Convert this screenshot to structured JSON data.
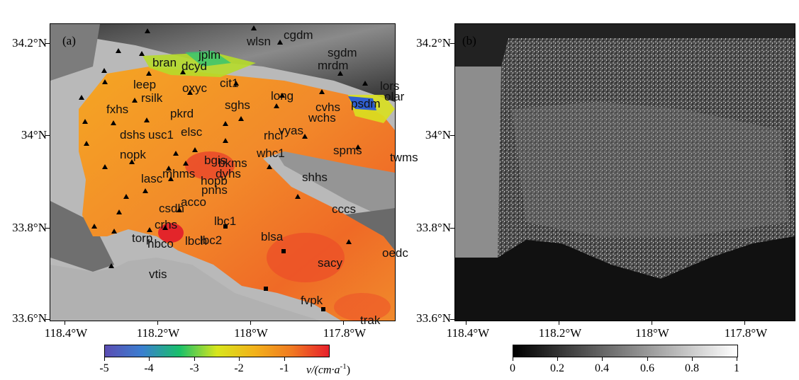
{
  "panels": {
    "a_tag": "(a)",
    "b_tag": "(b)"
  },
  "y_axis_labels": [
    "34.2°N",
    "34°N",
    "33.8°N",
    "33.6°N"
  ],
  "x_axis_labels": [
    "118.4°W",
    "118.2°W",
    "118°W",
    "117.8°W"
  ],
  "stations": [
    {
      "name": "wlsn",
      "marker": "triangle"
    },
    {
      "name": "cgdm",
      "marker": "triangle"
    },
    {
      "name": "bran",
      "marker": "triangle"
    },
    {
      "name": "jplm",
      "marker": "triangle"
    },
    {
      "name": "dcyd",
      "marker": "triangle"
    },
    {
      "name": "sgdm",
      "marker": "triangle"
    },
    {
      "name": "mrdm",
      "marker": "triangle"
    },
    {
      "name": "leep",
      "marker": "triangle"
    },
    {
      "name": "oxyc",
      "marker": "triangle"
    },
    {
      "name": "cit1",
      "marker": "triangle"
    },
    {
      "name": "lors",
      "marker": "triangle"
    },
    {
      "name": "olar",
      "marker": "triangle"
    },
    {
      "name": "rsilk",
      "marker": "triangle"
    },
    {
      "name": "long",
      "marker": "triangle"
    },
    {
      "name": "fxhs",
      "marker": "triangle"
    },
    {
      "name": "pkrd",
      "marker": "triangle"
    },
    {
      "name": "sghs",
      "marker": "triangle"
    },
    {
      "name": "cvhs",
      "marker": "triangle"
    },
    {
      "name": "psdm",
      "marker": "triangle"
    },
    {
      "name": "wchs",
      "marker": "triangle"
    },
    {
      "name": "dshs",
      "marker": "triangle"
    },
    {
      "name": "usc1",
      "marker": "triangle"
    },
    {
      "name": "elsc",
      "marker": "triangle"
    },
    {
      "name": "rhcl",
      "marker": "triangle"
    },
    {
      "name": "vyas",
      "marker": "triangle"
    },
    {
      "name": "nopk",
      "marker": "triangle"
    },
    {
      "name": "spms",
      "marker": "triangle"
    },
    {
      "name": "twms",
      "marker": "triangle"
    },
    {
      "name": "bgis",
      "marker": "triangle"
    },
    {
      "name": "whc1",
      "marker": "triangle"
    },
    {
      "name": "bkms",
      "marker": "triangle"
    },
    {
      "name": "lasc",
      "marker": "triangle"
    },
    {
      "name": "mhms",
      "marker": "triangle"
    },
    {
      "name": "hopb",
      "marker": "triangle"
    },
    {
      "name": "dyhs",
      "marker": "triangle"
    },
    {
      "name": "shhs",
      "marker": "triangle"
    },
    {
      "name": "pnhs",
      "marker": "triangle"
    },
    {
      "name": "acco",
      "marker": "triangle"
    },
    {
      "name": "csdh",
      "marker": "triangle"
    },
    {
      "name": "cccs",
      "marker": "triangle"
    },
    {
      "name": "lbc1",
      "marker": "triangle"
    },
    {
      "name": "crhs",
      "marker": "triangle"
    },
    {
      "name": "torp",
      "marker": "triangle"
    },
    {
      "name": "blsa",
      "marker": "square"
    },
    {
      "name": "lbch",
      "marker": "triangle"
    },
    {
      "name": "lbc2",
      "marker": "triangle"
    },
    {
      "name": "hbco",
      "marker": "triangle"
    },
    {
      "name": "oedc",
      "marker": "triangle"
    },
    {
      "name": "sacy",
      "marker": "square"
    },
    {
      "name": "vtis",
      "marker": "triangle"
    },
    {
      "name": "fvpk",
      "marker": "square"
    },
    {
      "name": "trak",
      "marker": "square"
    }
  ],
  "colorbar_a": {
    "ticks": [
      "-5",
      "-4",
      "-3",
      "-2",
      "-1"
    ],
    "unit": "v/(cm·a",
    "unit_sup": "-1",
    "unit_close": ")",
    "colors": [
      "#5b4db3",
      "#3a7fd0",
      "#19c06a",
      "#d8e61c",
      "#f2b21a",
      "#f07a22",
      "#e8202b"
    ]
  },
  "colorbar_b": {
    "ticks": [
      "0",
      "0.2",
      "0.4",
      "0.6",
      "0.8",
      "1"
    ]
  }
}
